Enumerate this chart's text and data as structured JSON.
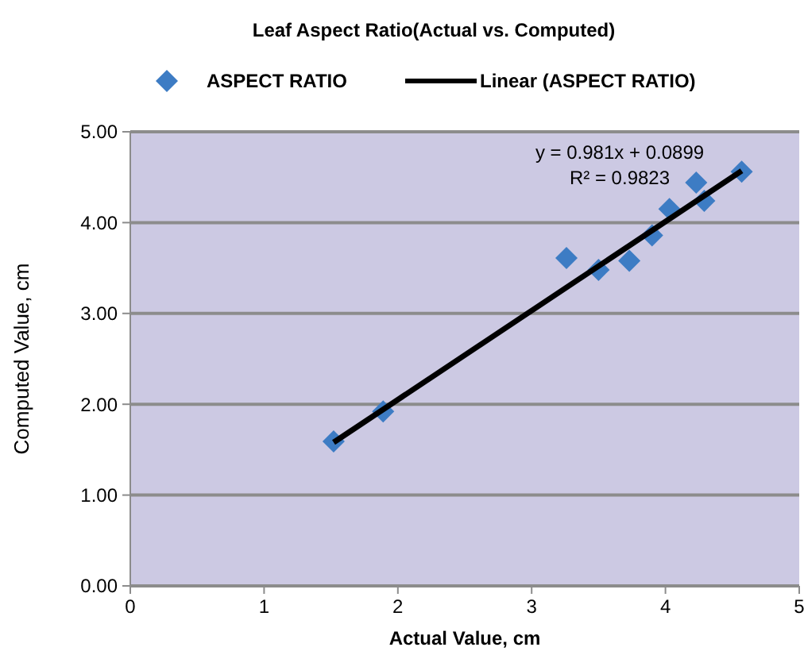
{
  "chart_data": {
    "type": "scatter",
    "title": "Leaf Aspect Ratio(Actual vs. Computed)",
    "xlabel": "Actual Value, cm",
    "ylabel": "Computed Value, cm",
    "xlim": [
      0,
      5
    ],
    "xticks": [
      0,
      1,
      2,
      3,
      4,
      5
    ],
    "ylim": [
      0,
      5
    ],
    "yticks": [
      {
        "value": 0,
        "label": "0.00"
      },
      {
        "value": 1,
        "label": "1.00"
      },
      {
        "value": 2,
        "label": "2.00"
      },
      {
        "value": 3,
        "label": "3.00"
      },
      {
        "value": 4,
        "label": "4.00"
      },
      {
        "value": 5,
        "label": "5.00"
      }
    ],
    "grid": "y",
    "legend": "top",
    "marker": "diamond",
    "annotations": [
      "y = 0.981x + 0.0899",
      "R² = 0.9823"
    ],
    "series": [
      {
        "name": "ASPECT RATIO",
        "color": "#3d7cc4",
        "x": [
          1.52,
          1.89,
          3.26,
          3.5,
          3.73,
          3.9,
          4.03,
          4.23,
          4.29,
          4.57
        ],
        "values": [
          1.59,
          1.92,
          3.61,
          3.48,
          3.58,
          3.86,
          4.15,
          4.44,
          4.24,
          4.56
        ]
      },
      {
        "name": "Linear (ASPECT RATIO)",
        "type": "line",
        "color": "#000000",
        "line_style": "solid",
        "marker": "none",
        "x": [
          1.52,
          4.57
        ],
        "values": [
          1.58,
          4.57
        ]
      }
    ]
  }
}
